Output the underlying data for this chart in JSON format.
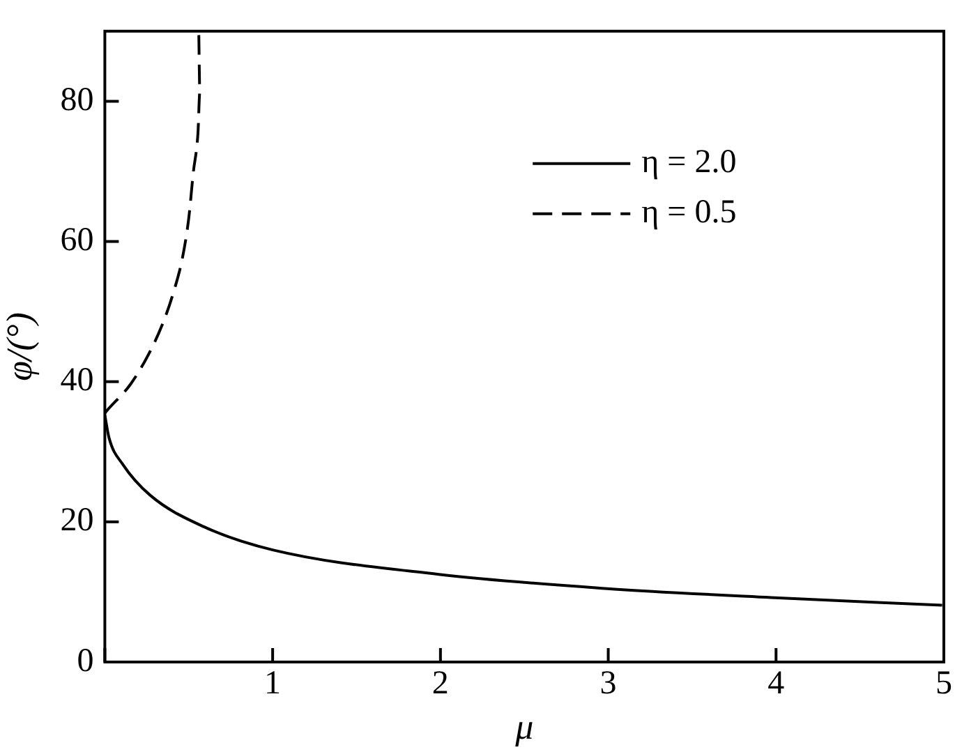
{
  "chart_data": {
    "type": "line",
    "xlabel": "μ",
    "ylabel": "φ/(°)",
    "xlim": [
      0,
      5
    ],
    "xticks": [
      {
        "value": 0,
        "label": null
      },
      1,
      2,
      3,
      4,
      5
    ],
    "ylim": [
      0,
      90
    ],
    "yticks": [
      0,
      20,
      40,
      60,
      80
    ],
    "grid": false,
    "legend": "top right",
    "marker": "none",
    "series": [
      {
        "name": "η = 2.0",
        "color": "#000000",
        "line_style": "solid",
        "x": [
          0,
          0.026,
          0.107,
          0.27,
          0.59,
          1.0,
          1.99,
          2.98,
          3.97,
          4.99
        ],
        "values": [
          35.2,
          31.9,
          28.2,
          23.8,
          19.3,
          16.0,
          12.5,
          10.5,
          9.2,
          8.1
        ]
      },
      {
        "name": "η = 0.5",
        "color": "#000000",
        "line_style": "dashed",
        "x": [
          0,
          0.01,
          0.152,
          0.265,
          0.35,
          0.406,
          0.462,
          0.5,
          0.527,
          0.555,
          0.566,
          0.56
        ],
        "values": [
          35.5,
          35.8,
          39.6,
          44.1,
          48.6,
          52.5,
          57.6,
          63.3,
          69.8,
          75.5,
          81.3,
          89.6
        ]
      }
    ]
  }
}
